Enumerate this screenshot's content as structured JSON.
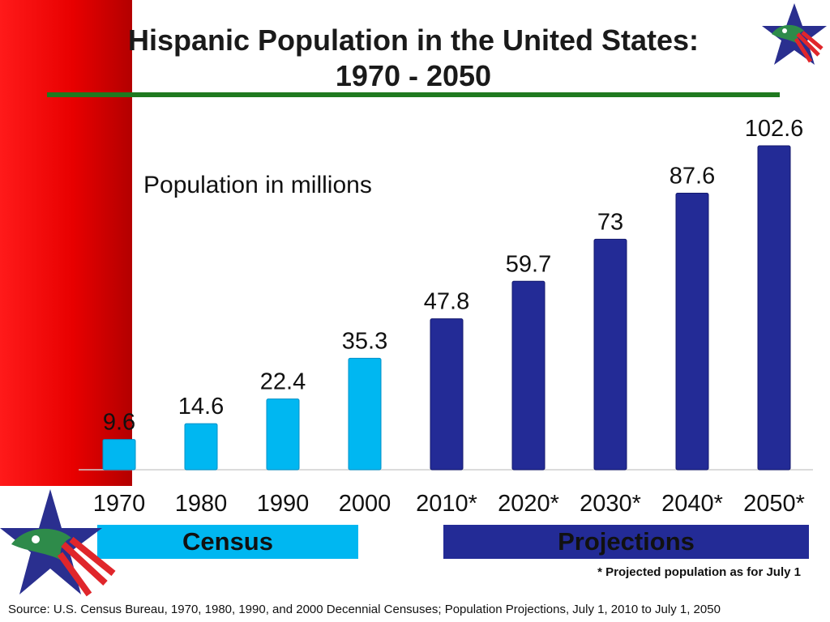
{
  "header": {
    "title_line1": "Hispanic Population in the United States:",
    "title_line2": "1970 - 2050"
  },
  "unit_note": "Population in millions",
  "legend": {
    "census_label": "Census",
    "projections_label": "Projections"
  },
  "footnote": "* Projected population as for July 1",
  "source": "Source: U.S. Census Bureau, 1970, 1980, 1990, and 2000 Decennial Censuses; Population Projections, July 1, 2010 to July 1, 2050",
  "colors": {
    "census": "#00b7f1",
    "census_edge": "#0090c8",
    "projection": "#232b96",
    "projection_edge": "#141a6e",
    "title_rule": "#1f7a1f",
    "band": "#e80000"
  },
  "icons": {
    "top_right": "star-eagle-logo-icon",
    "bottom_left": "star-eagle-logo-icon"
  },
  "chart_data": {
    "type": "bar",
    "title": "Hispanic Population in the United States: 1970 - 2050",
    "ylabel": "Population in millions",
    "xlabel": "",
    "ylim": [
      0,
      102.6
    ],
    "grid": false,
    "categories": [
      "1970",
      "1980",
      "1990",
      "2000",
      "2010*",
      "2020*",
      "2030*",
      "2040*",
      "2050*"
    ],
    "values": [
      9.6,
      14.6,
      22.4,
      35.3,
      47.8,
      59.7,
      73,
      87.6,
      102.6
    ],
    "value_labels": [
      "9.6",
      "14.6",
      "22.4",
      "35.3",
      "47.8",
      "59.7",
      "73",
      "87.6",
      "102.6"
    ],
    "groups": [
      "census",
      "census",
      "census",
      "census",
      "projection",
      "projection",
      "projection",
      "projection",
      "projection"
    ]
  }
}
